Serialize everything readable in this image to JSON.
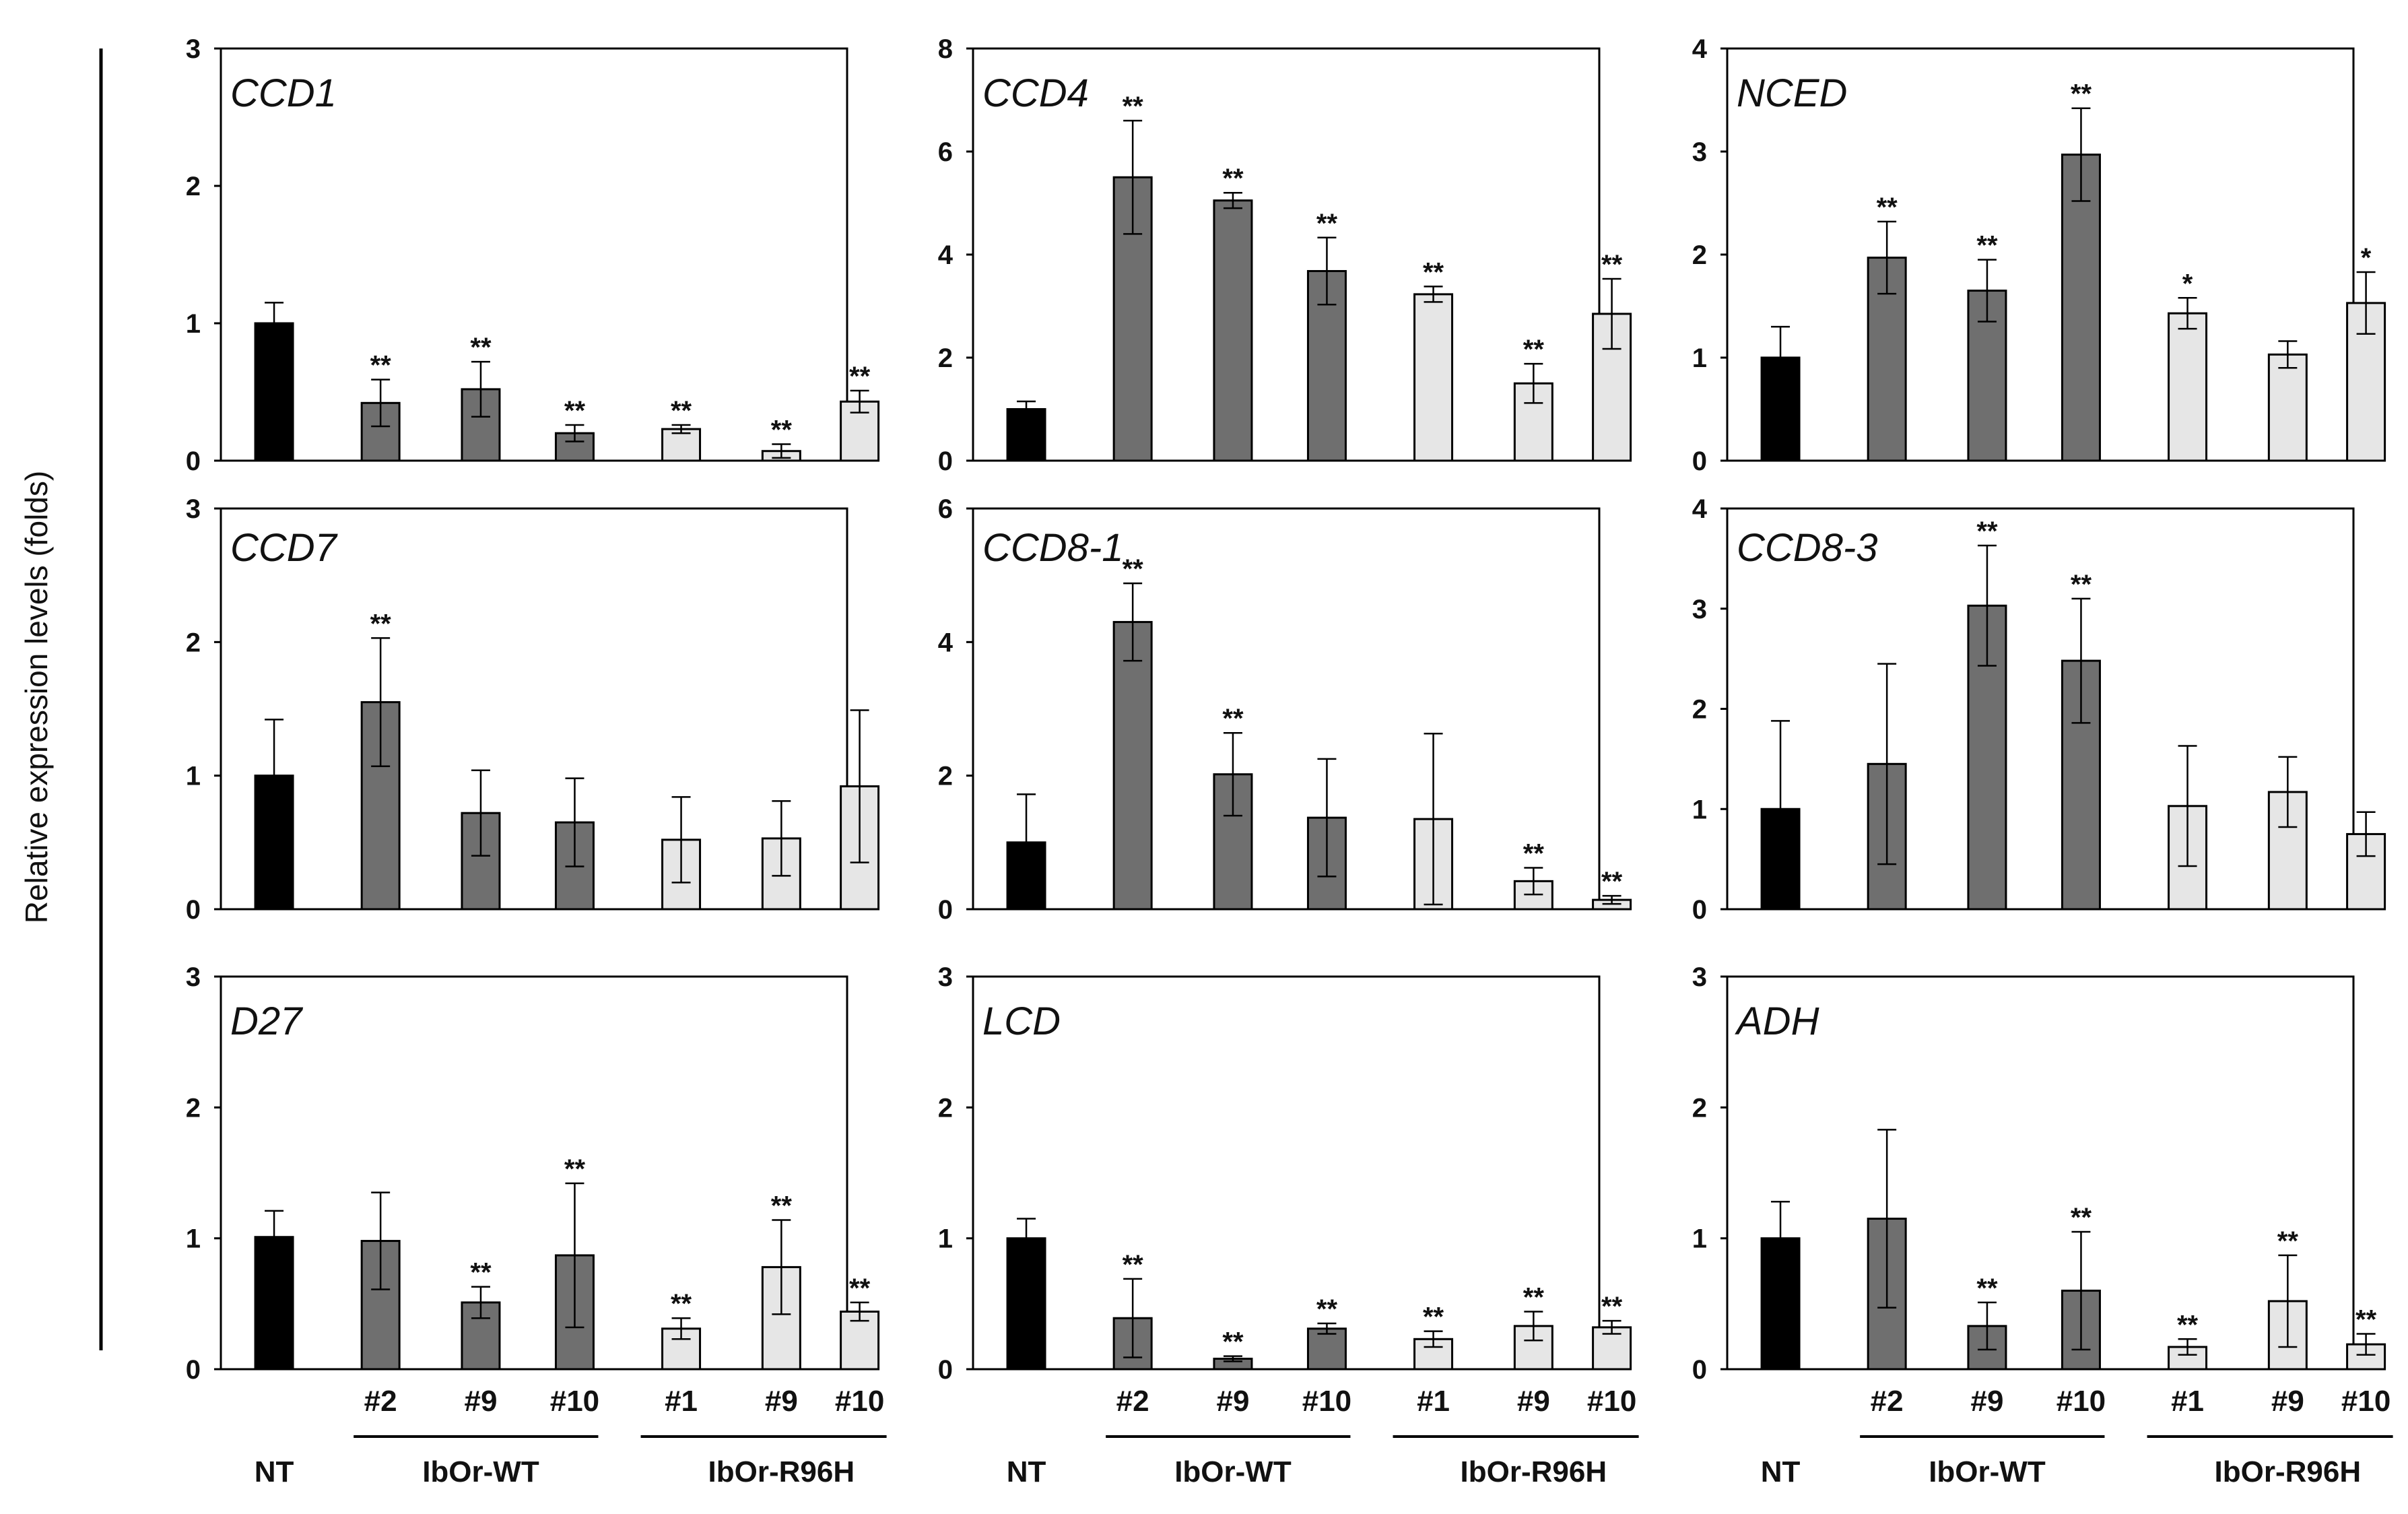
{
  "figure": {
    "ylabel": "Relative expression levels (folds)",
    "categories": [
      "NT",
      "#2",
      "#9",
      "#10",
      "#1",
      "#9",
      "#10"
    ],
    "group_labels": {
      "nt": "NT",
      "wt": "IbOr-WT",
      "r96h": "IbOr-R96H"
    },
    "series_colors": [
      "#000000",
      "#6f6f6f",
      "#6f6f6f",
      "#6f6f6f",
      "#e6e6e6",
      "#e6e6e6",
      "#e6e6e6"
    ]
  },
  "chart_data": [
    {
      "type": "bar",
      "title": "CCD1",
      "ylim": [
        0,
        3
      ],
      "yticks": [
        0,
        1,
        2,
        3
      ],
      "values": [
        1.0,
        0.42,
        0.52,
        0.2,
        0.23,
        0.07,
        0.43
      ],
      "errors": [
        0.15,
        0.17,
        0.2,
        0.06,
        0.03,
        0.05,
        0.08
      ],
      "significance": [
        "",
        "**",
        "**",
        "**",
        "**",
        "**",
        "**"
      ]
    },
    {
      "type": "bar",
      "title": "CCD4",
      "ylim": [
        0,
        8
      ],
      "yticks": [
        0,
        2,
        4,
        6,
        8
      ],
      "values": [
        1.0,
        5.5,
        5.05,
        3.68,
        3.23,
        1.5,
        2.85
      ],
      "errors": [
        0.15,
        1.1,
        0.15,
        0.65,
        0.15,
        0.38,
        0.68
      ],
      "significance": [
        "",
        "**",
        "**",
        "**",
        "**",
        "**",
        "**"
      ]
    },
    {
      "type": "bar",
      "title": "NCED",
      "ylim": [
        0,
        4
      ],
      "yticks": [
        0,
        1,
        2,
        3,
        4
      ],
      "values": [
        1.0,
        1.97,
        1.65,
        2.97,
        1.43,
        1.03,
        1.53
      ],
      "errors": [
        0.3,
        0.35,
        0.3,
        0.45,
        0.15,
        0.13,
        0.3
      ],
      "significance": [
        "",
        "**",
        "**",
        "**",
        "*",
        "",
        "*"
      ]
    },
    {
      "type": "bar",
      "title": "CCD7",
      "ylim": [
        0,
        3
      ],
      "yticks": [
        0,
        1,
        2,
        3
      ],
      "values": [
        1.0,
        1.55,
        0.72,
        0.65,
        0.52,
        0.53,
        0.92
      ],
      "errors": [
        0.42,
        0.48,
        0.32,
        0.33,
        0.32,
        0.28,
        0.57
      ],
      "significance": [
        "",
        "**",
        "",
        "",
        "",
        "",
        ""
      ]
    },
    {
      "type": "bar",
      "title": "CCD8-1",
      "ylim": [
        0,
        6
      ],
      "yticks": [
        0,
        2,
        4,
        6
      ],
      "values": [
        1.0,
        4.3,
        2.02,
        1.37,
        1.35,
        0.42,
        0.14
      ],
      "errors": [
        0.72,
        0.58,
        0.62,
        0.88,
        1.28,
        0.2,
        0.06
      ],
      "significance": [
        "",
        "**",
        "**",
        "",
        "",
        "**",
        "**"
      ]
    },
    {
      "type": "bar",
      "title": "CCD8-3",
      "ylim": [
        0,
        4
      ],
      "yticks": [
        0,
        1,
        2,
        3,
        4
      ],
      "values": [
        1.0,
        1.45,
        3.03,
        2.48,
        1.03,
        1.17,
        0.75
      ],
      "errors": [
        0.88,
        1.0,
        0.6,
        0.62,
        0.6,
        0.35,
        0.22
      ],
      "significance": [
        "",
        "",
        "**",
        "**",
        "",
        "",
        ""
      ]
    },
    {
      "type": "bar",
      "title": "D27",
      "ylim": [
        0,
        3
      ],
      "yticks": [
        0,
        1,
        2,
        3
      ],
      "values": [
        1.01,
        0.98,
        0.51,
        0.87,
        0.31,
        0.78,
        0.44
      ],
      "errors": [
        0.2,
        0.37,
        0.12,
        0.55,
        0.08,
        0.36,
        0.07
      ],
      "significance": [
        "",
        "",
        "**",
        "**",
        "**",
        "**",
        "**"
      ]
    },
    {
      "type": "bar",
      "title": "LCD",
      "ylim": [
        0,
        3
      ],
      "yticks": [
        0,
        1,
        2,
        3
      ],
      "values": [
        1.0,
        0.39,
        0.08,
        0.31,
        0.23,
        0.33,
        0.32
      ],
      "errors": [
        0.15,
        0.3,
        0.02,
        0.04,
        0.06,
        0.11,
        0.05
      ],
      "significance": [
        "",
        "**",
        "**",
        "**",
        "**",
        "**",
        "**"
      ]
    },
    {
      "type": "bar",
      "title": "ADH",
      "ylim": [
        0,
        3
      ],
      "yticks": [
        0,
        1,
        2,
        3
      ],
      "values": [
        1.0,
        1.15,
        0.33,
        0.6,
        0.17,
        0.52,
        0.19
      ],
      "errors": [
        0.28,
        0.68,
        0.18,
        0.45,
        0.06,
        0.35,
        0.08
      ],
      "significance": [
        "",
        "",
        "**",
        "**",
        "**",
        "**",
        "**"
      ]
    }
  ]
}
